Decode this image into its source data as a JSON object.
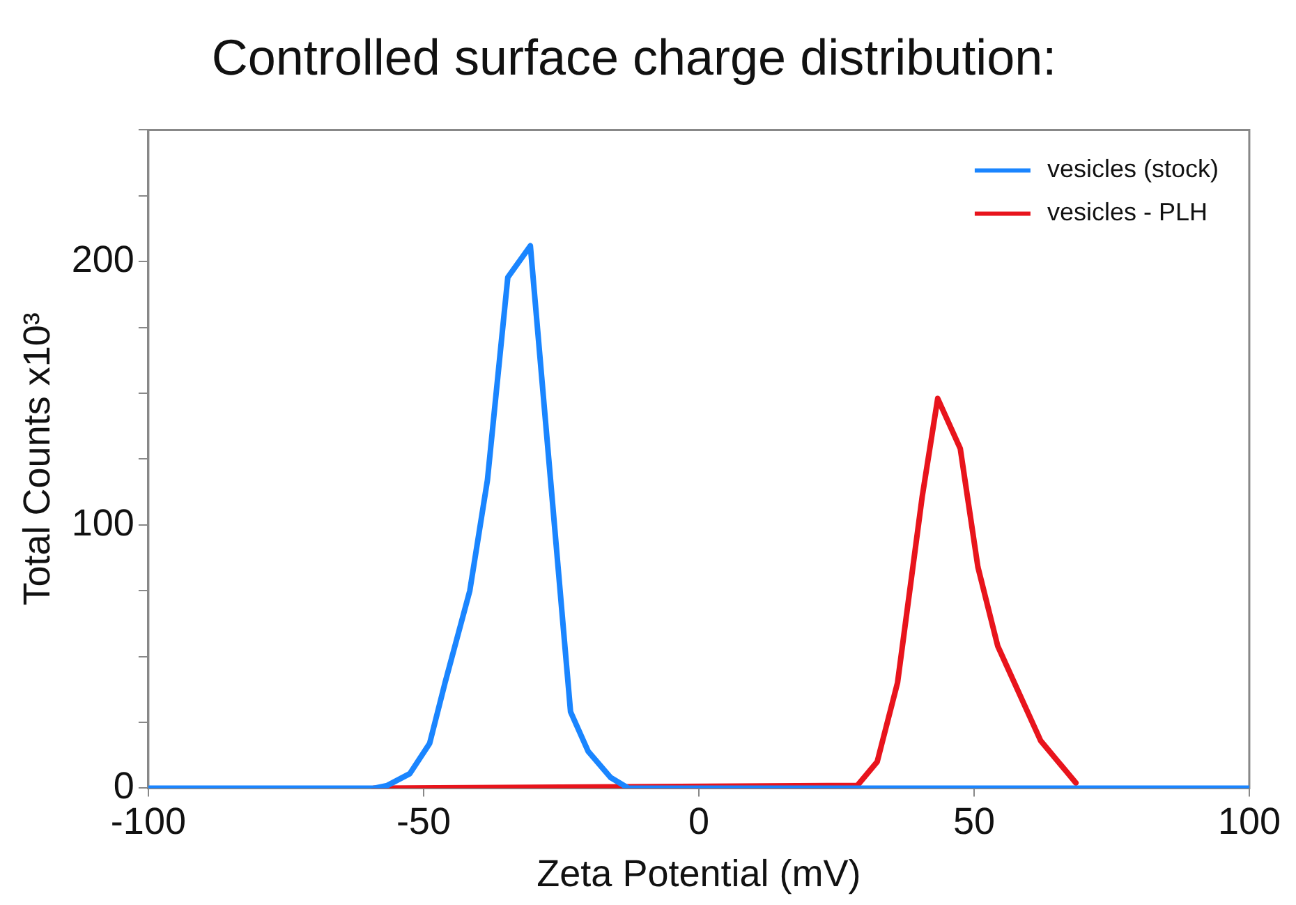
{
  "chart_data": {
    "type": "line",
    "title": "Controlled surface charge distribution:",
    "xlabel": "Zeta Potential (mV)",
    "ylabel": "Total Counts x10³",
    "xlim": [
      -100,
      100
    ],
    "xticks": [
      -100,
      -50,
      0,
      50,
      100
    ],
    "ylim": [
      0,
      250
    ],
    "yticks": [
      0,
      {
        "value": 25,
        "label": null
      },
      {
        "value": 50,
        "label": null
      },
      {
        "value": 75,
        "label": null
      },
      100,
      {
        "value": 125,
        "label": null
      },
      {
        "value": 150,
        "label": null
      },
      {
        "value": 175,
        "label": null
      },
      200,
      {
        "value": 225,
        "label": null
      },
      {
        "value": 250,
        "label": null
      }
    ],
    "grid": false,
    "legend": "top right",
    "marker": "none",
    "line_style": "solid",
    "series": [
      {
        "name": "vesicles - PLH",
        "color": "#e8141c",
        "x": [
          -59,
          28.8,
          32.4,
          36.1,
          40.6,
          43.4,
          47.5,
          50.7,
          54.3,
          62.1,
          68.5
        ],
        "values": [
          0,
          1,
          10,
          40,
          111,
          148,
          129,
          84,
          54,
          18,
          2
        ]
      },
      {
        "name": "vesicles (stock)",
        "color": "#1a85ff",
        "x": [
          -100,
          -58.9,
          -56.6,
          -52.5,
          -48.9,
          -46.1,
          -41.6,
          -38.4,
          -34.7,
          -30.6,
          -23.3,
          -20.1,
          -16,
          -12.8,
          100
        ],
        "values": [
          0,
          0,
          1,
          5.5,
          17,
          40,
          75,
          117,
          194,
          206,
          29,
          14,
          4,
          0,
          0
        ]
      }
    ]
  }
}
